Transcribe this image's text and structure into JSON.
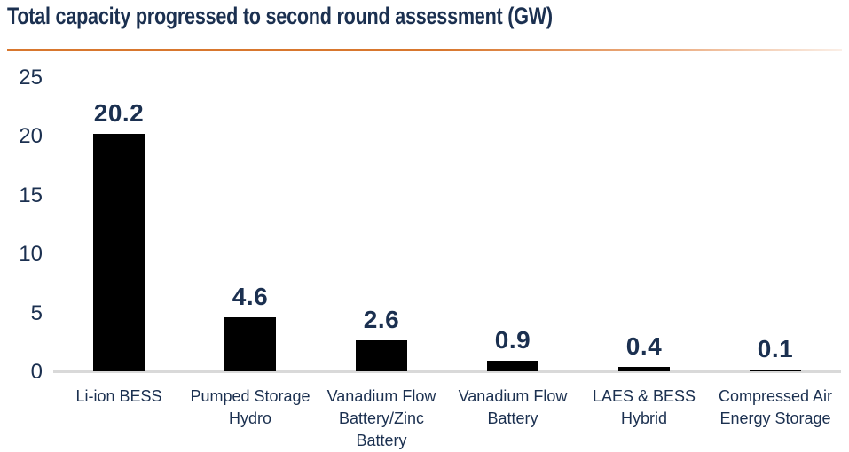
{
  "title": "Total capacity progressed to second round assessment (GW)",
  "colors": {
    "title_text": "#1B3050",
    "accent_line": "#D8772E",
    "bar_fill": "#000000",
    "axis_line": "#D9D9D9",
    "tick_label": "#1B3050",
    "data_label": "#1B3050",
    "category_label": "#1B3050",
    "background": "#FFFFFF"
  },
  "chart_data": {
    "type": "bar",
    "title": "Total capacity progressed to second round assessment (GW)",
    "categories": [
      "Li-ion BESS",
      "Pumped Storage Hydro",
      "Vanadium Flow Battery/Zinc Battery",
      "Vanadium Flow Battery",
      "LAES & BESS Hybrid",
      "Compressed Air Energy Storage"
    ],
    "values": [
      20.2,
      4.6,
      2.6,
      0.9,
      0.4,
      0.1
    ],
    "data_labels": [
      "20.2",
      "4.6",
      "2.6",
      "0.9",
      "0.4",
      "0.1"
    ],
    "xlabel": "",
    "ylabel": "",
    "ylim": [
      0,
      25
    ],
    "yticks": [
      0,
      5,
      10,
      15,
      20,
      25
    ],
    "grid": false,
    "legend": false,
    "bar_color": "#000000",
    "orientation": "vertical"
  }
}
